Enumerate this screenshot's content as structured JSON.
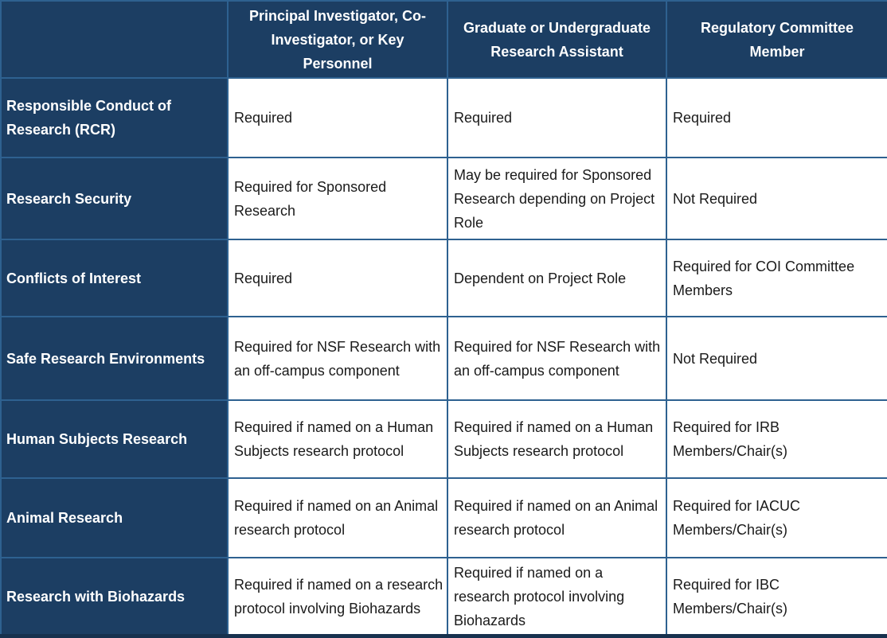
{
  "table": {
    "name": "research-training-requirements",
    "columns": [
      "Principal Investigator, Co-Investigator, or Key Personnel",
      "Graduate or Undergraduate Research Assistant",
      "Regulatory Committee Member"
    ],
    "rows": [
      {
        "label": "Responsible Conduct of Research (RCR)",
        "cells": [
          "Required",
          "Required",
          "Required"
        ]
      },
      {
        "label": "Research Security",
        "cells": [
          "Required for Sponsored Research",
          "May be required for Sponsored Research depending on Project Role",
          "Not Required"
        ]
      },
      {
        "label": "Conflicts of Interest",
        "cells": [
          "Required",
          "Dependent on Project Role",
          "Required for COI Committee Members"
        ]
      },
      {
        "label": "Safe Research Environments",
        "cells": [
          "Required for NSF Research with an off-campus component",
          "Required for NSF Research with an off-campus component",
          "Not Required"
        ]
      },
      {
        "label": "Human Subjects Research",
        "cells": [
          "Required if named on a Human Subjects research protocol",
          "Required if named on a Human Subjects research protocol",
          "Required for IRB Members/Chair(s)"
        ]
      },
      {
        "label": "Animal Research",
        "cells": [
          "Required if named on an Animal research protocol",
          "Required if named on an Animal research protocol",
          "Required for IACUC Members/Chair(s)"
        ]
      },
      {
        "label": "Research with Biohazards",
        "cells": [
          "Required if named on a research protocol involving Biohazards",
          "Required if named on a research protocol involving Biohazards",
          "Required for IBC Members/Chair(s)"
        ]
      }
    ]
  },
  "colors": {
    "header_bg": "#1C3E63",
    "grid_border": "#2E6190",
    "outer_bottom_border": "#17314E",
    "header_text": "#FFFFFF",
    "body_text": "#1A1A1A",
    "cell_bg": "#FFFFFF"
  }
}
